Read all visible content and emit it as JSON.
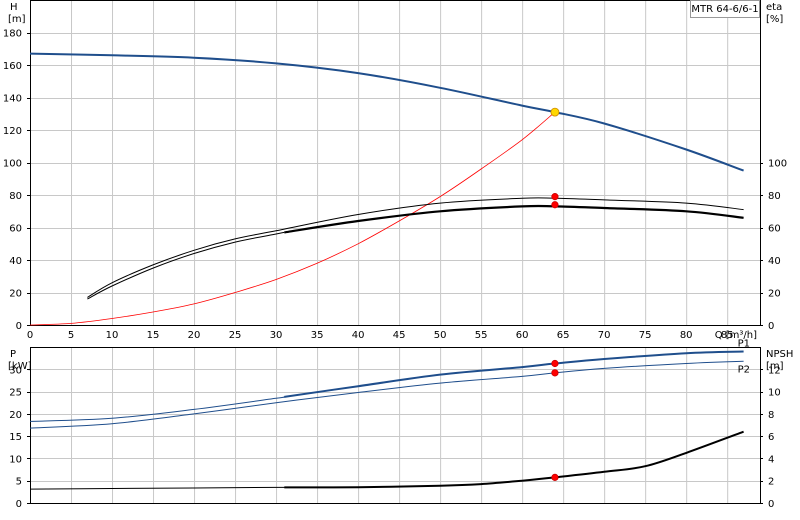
{
  "chart_data": [
    {
      "type": "line",
      "title": "MTR 64-6/6-1",
      "xlabel": "Q [m³/h]",
      "ylabel_left": [
        "H",
        "[m]"
      ],
      "ylabel_right": [
        "eta",
        "[%]"
      ],
      "xlim": [
        0,
        89
      ],
      "ylim_left": [
        0,
        200
      ],
      "ylim_right": [
        0,
        200
      ],
      "x_ticks": [
        0,
        5,
        10,
        15,
        20,
        25,
        30,
        35,
        40,
        45,
        50,
        55,
        60,
        65,
        70,
        75,
        80,
        85
      ],
      "y_ticks_left": [
        0,
        20,
        40,
        60,
        80,
        100,
        120,
        140,
        160,
        180
      ],
      "y_ticks_right": [
        0,
        20,
        40,
        60,
        80,
        100
      ],
      "grid": true,
      "series": [
        {
          "color": "#1f4e8c",
          "width": 2,
          "x": [
            0,
            10,
            20,
            30,
            40,
            50,
            60,
            64,
            70,
            80,
            87
          ],
          "y": [
            167,
            166,
            164.5,
            161,
            155,
            146,
            135,
            131,
            124,
            108,
            95
          ]
        },
        {
          "color": "#ff0000",
          "width": 0.8,
          "x": [
            0,
            5,
            10,
            15,
            20,
            25,
            30,
            35,
            40,
            45,
            50,
            55,
            60,
            64
          ],
          "y": [
            0,
            1,
            4,
            8,
            13,
            20,
            28,
            38,
            50,
            64,
            79,
            96,
            114,
            131
          ]
        },
        {
          "color": "#000000",
          "width": 1,
          "x": [
            7,
            10,
            15,
            20,
            25,
            30,
            40,
            50,
            60,
            64,
            70,
            80,
            87
          ],
          "y": [
            17,
            26,
            37,
            46,
            53,
            58,
            68,
            75,
            78,
            78,
            77,
            75,
            71
          ]
        },
        {
          "color": "#000000",
          "width": 1,
          "x": [
            7,
            10,
            15,
            20,
            25,
            30,
            31
          ],
          "y": [
            16,
            24,
            35,
            44,
            51,
            56,
            57
          ]
        },
        {
          "color": "#000000",
          "width": 2.2,
          "x": [
            31,
            40,
            50,
            60,
            64,
            70,
            80,
            87
          ],
          "y": [
            57,
            64,
            70,
            73,
            73,
            72,
            70,
            66
          ]
        }
      ],
      "points": [
        {
          "x": 64,
          "y": 131,
          "color": "#ffd700"
        },
        {
          "x": 64,
          "y": 79,
          "color": "#ff0000"
        },
        {
          "x": 64,
          "y": 74,
          "color": "#ff0000"
        }
      ]
    },
    {
      "type": "line",
      "xlabel": "",
      "ylabel_left": [
        "P",
        "[kW]"
      ],
      "ylabel_right": [
        "NPSH",
        "[m]"
      ],
      "xlim": [
        0,
        89
      ],
      "ylim_left": [
        0,
        35
      ],
      "ylim_right": [
        0,
        14
      ],
      "y_ticks_left": [
        0,
        5,
        10,
        15,
        20,
        25,
        30
      ],
      "y_ticks_right": [
        0,
        2,
        4,
        6,
        8,
        10,
        12
      ],
      "grid": true,
      "series": [
        {
          "name": "P1",
          "color": "#1f4e8c",
          "width": 1,
          "axis": "left",
          "x": [
            0,
            10,
            20,
            30,
            31
          ],
          "y": [
            18.3,
            19,
            21,
            23.5,
            23.8
          ]
        },
        {
          "name": "P1",
          "color": "#1f4e8c",
          "width": 2,
          "axis": "left",
          "x": [
            31,
            40,
            50,
            60,
            64,
            70,
            80,
            87
          ],
          "y": [
            23.8,
            26.2,
            28.8,
            30.5,
            31.3,
            32.3,
            33.6,
            34
          ]
        },
        {
          "name": "P2",
          "color": "#1f4e8c",
          "width": 1,
          "axis": "left",
          "x": [
            0,
            10,
            20,
            30,
            40,
            50,
            60,
            64,
            70,
            80,
            87
          ],
          "y": [
            16.8,
            17.8,
            20,
            22.5,
            24.8,
            26.9,
            28.4,
            29.2,
            30.2,
            31.3,
            31.8
          ]
        },
        {
          "color": "#000000",
          "width": 1,
          "axis": "right",
          "x": [
            0,
            10,
            20,
            30,
            31
          ],
          "y": [
            1.25,
            1.3,
            1.35,
            1.4,
            1.4
          ]
        },
        {
          "color": "#000000",
          "width": 2,
          "axis": "right",
          "x": [
            31,
            40,
            50,
            55,
            60,
            64,
            70,
            75,
            80,
            87
          ],
          "y": [
            1.4,
            1.42,
            1.55,
            1.7,
            2.0,
            2.3,
            2.8,
            3.3,
            4.5,
            6.4
          ]
        }
      ],
      "points": [
        {
          "x": 64,
          "y": 31.3,
          "color": "#ff0000",
          "axis": "left"
        },
        {
          "x": 64,
          "y": 29.2,
          "color": "#ff0000",
          "axis": "left"
        },
        {
          "x": 64,
          "y": 2.3,
          "color": "#ff0000",
          "axis": "right"
        }
      ],
      "labels": [
        {
          "text": "P1",
          "x": 87,
          "y": 36,
          "color": "#1f4e8c"
        },
        {
          "text": "P2",
          "x": 87,
          "y": 30.2,
          "color": "#1f4e8c"
        }
      ]
    }
  ]
}
